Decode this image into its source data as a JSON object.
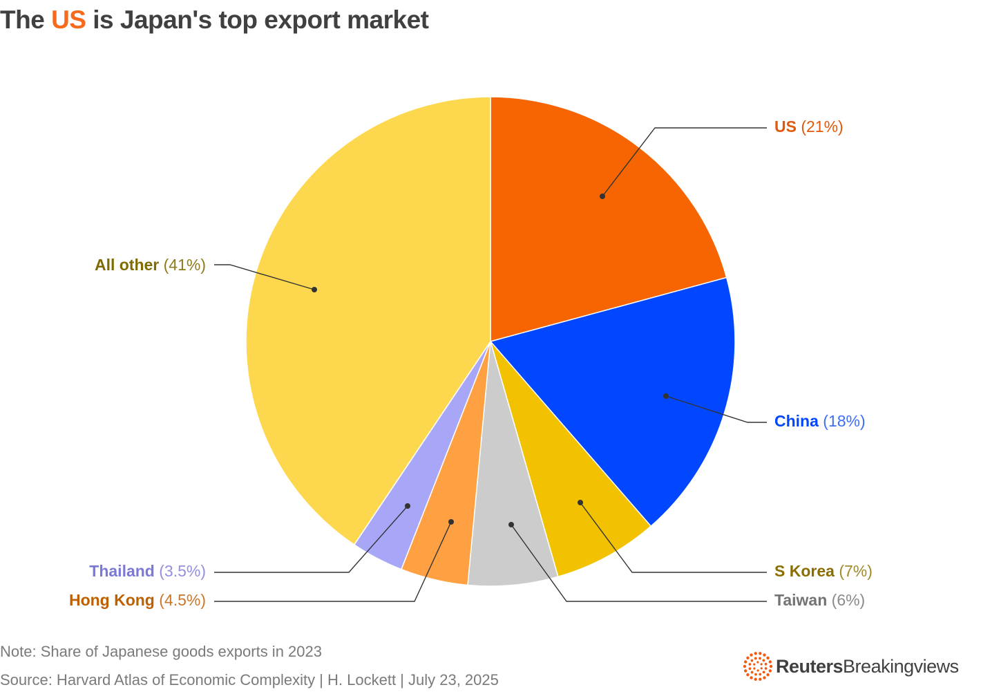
{
  "title": {
    "prefix": "The ",
    "highlight": "US",
    "suffix": " is Japan's top export market"
  },
  "chart_data": {
    "type": "pie",
    "start": "12 o'clock",
    "direction": "clockwise",
    "slices": [
      {
        "name": "US",
        "value": 21,
        "value_label": "(21%)",
        "color": "#f76402",
        "label_color": "#e05a0c",
        "value_color": "#e05a0c"
      },
      {
        "name": "China",
        "value": 18,
        "value_label": "(18%)",
        "color": "#0047ff",
        "label_color": "#0047ff",
        "value_color": "#3d6ef7"
      },
      {
        "name": "S Korea",
        "value": 7,
        "value_label": "(7%)",
        "color": "#f2c200",
        "label_color": "#8c6d00",
        "value_color": "#a08a2a"
      },
      {
        "name": "Taiwan",
        "value": 6,
        "value_label": "(6%)",
        "color": "#cccccc",
        "label_color": "#737373",
        "value_color": "#8a8a8a"
      },
      {
        "name": "Hong Kong",
        "value": 4.5,
        "value_label": "(4.5%)",
        "color": "#ffa043",
        "label_color": "#bf6000",
        "value_color": "#c9772b"
      },
      {
        "name": "Thailand",
        "value": 3.5,
        "value_label": "(3.5%)",
        "color": "#a8a6f7",
        "label_color": "#7c78d8",
        "value_color": "#9290dc"
      },
      {
        "name": "All other",
        "value": 41,
        "value_label": "(41%)",
        "color": "#fdd84e",
        "label_color": "#806b00",
        "value_color": "#8f7b1a"
      }
    ]
  },
  "note": "Note: Share of Japanese goods exports in 2023",
  "source": "Source: Harvard Atlas of Economic Complexity | H. Lockett | July 23, 2025",
  "logo": {
    "icon": "reuters-dots-icon",
    "brand": "Reuters",
    "product": "Breakingviews",
    "color": "#f25a0f"
  }
}
